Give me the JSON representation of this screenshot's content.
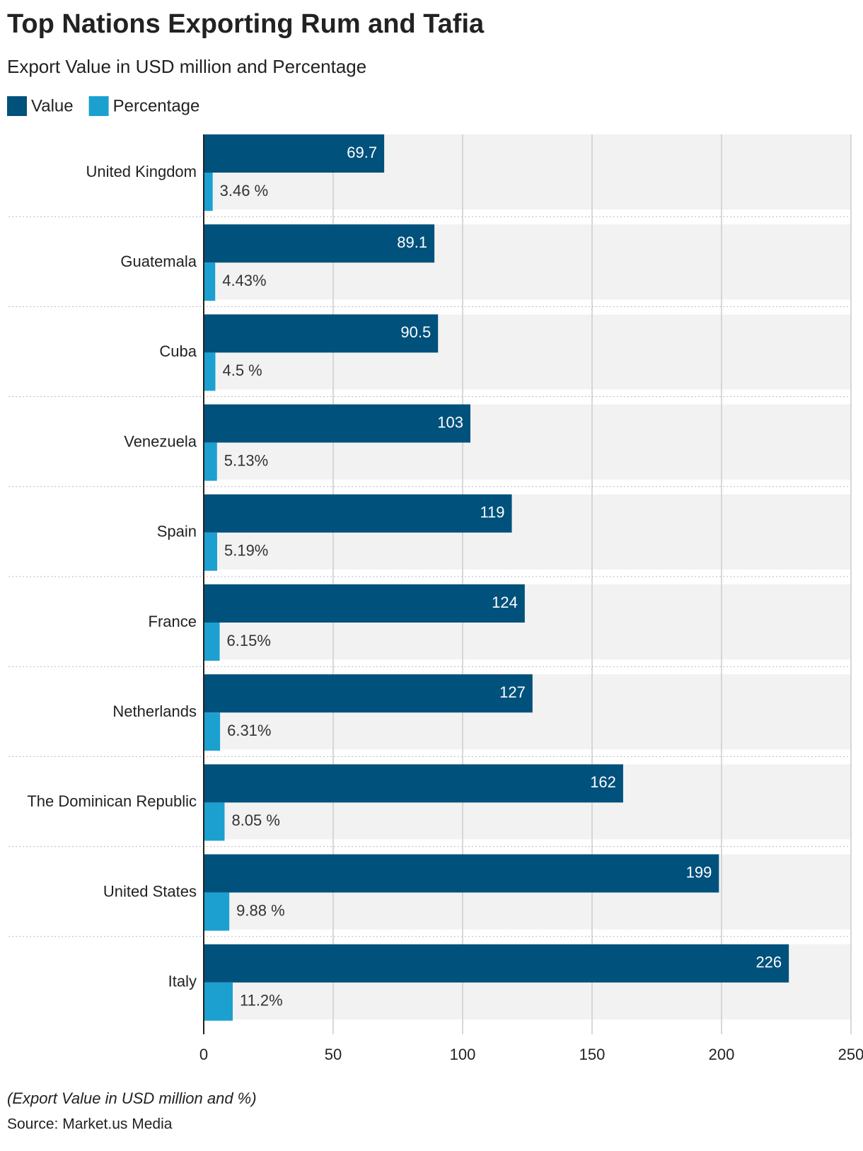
{
  "chart_data": {
    "type": "grouped-horizontal-bar",
    "title": "Top Nations Exporting Rum and Tafia",
    "subtitle": "Export Value in USD million and Percentage",
    "note": "(Export Value in USD million and %)",
    "source": "Source: Market.us Media",
    "categories": [
      "United Kingdom",
      "Guatemala",
      "Cuba",
      "Venezuela",
      "Spain",
      "France",
      "Netherlands",
      "The Dominican Republic",
      "United States",
      "Italy"
    ],
    "series": [
      {
        "name": "Value",
        "color": "#00517c",
        "values": [
          69.7,
          89.1,
          90.5,
          103,
          119,
          124,
          127,
          162,
          199,
          226
        ]
      },
      {
        "name": "Percentage",
        "color": "#1ba0d0",
        "values": [
          3.46,
          4.43,
          4.5,
          5.13,
          5.19,
          6.15,
          6.31,
          8.05,
          9.88,
          11.2
        ],
        "value_labels": [
          "3.46 %",
          "4.43%",
          "4.5 %",
          "5.13%",
          "5.19%",
          "6.15%",
          "6.31%",
          "8.05 %",
          "9.88 %",
          "11.2%"
        ]
      }
    ],
    "xlim": [
      0,
      250
    ],
    "xticks": [
      0,
      50,
      100,
      150,
      200,
      250
    ],
    "grid": true,
    "legend": "top-left"
  }
}
